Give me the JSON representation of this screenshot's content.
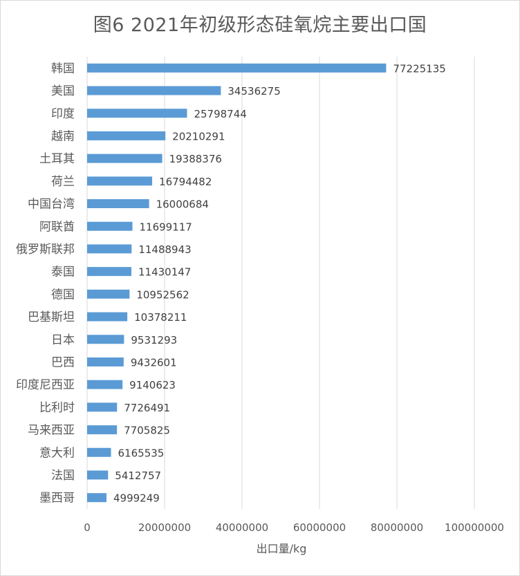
{
  "chart_data": {
    "type": "bar",
    "orientation": "horizontal",
    "title": "图6   2021年初级形态硅氧烷主要出口国",
    "xlabel": "出口量/kg",
    "ylabel": "",
    "xlim": [
      0,
      100000000
    ],
    "xticks": [
      0,
      20000000,
      40000000,
      60000000,
      80000000,
      100000000
    ],
    "xtick_labels": [
      "0",
      "20000000",
      "40000000",
      "60000000",
      "80000000",
      "100000000"
    ],
    "grid": true,
    "legend": "none",
    "bar_color": "#5b9bd5",
    "categories": [
      "韩国",
      "美国",
      "印度",
      "越南",
      "土耳其",
      "荷兰",
      "中国台湾",
      "阿联酋",
      "俄罗斯联邦",
      "泰国",
      "德国",
      "巴基斯坦",
      "日本",
      "巴西",
      "印度尼西亚",
      "比利时",
      "马来西亚",
      "意大利",
      "法国",
      "墨西哥"
    ],
    "values": [
      77225135,
      34536275,
      25798744,
      20210291,
      19388376,
      16794482,
      16000684,
      11699117,
      11488943,
      11430147,
      10952562,
      10378211,
      9531293,
      9432601,
      9140623,
      7726491,
      7705825,
      6165535,
      5412757,
      4999249
    ],
    "data_labels": [
      "77225135",
      "34536275",
      "25798744",
      "20210291",
      "19388376",
      "16794482",
      "16000684",
      "11699117",
      "11488943",
      "11430147",
      "10952562",
      "10378211",
      "9531293",
      "9432601",
      "9140623",
      "7726491",
      "7705825",
      "6165535",
      "5412757",
      "4999249"
    ]
  }
}
